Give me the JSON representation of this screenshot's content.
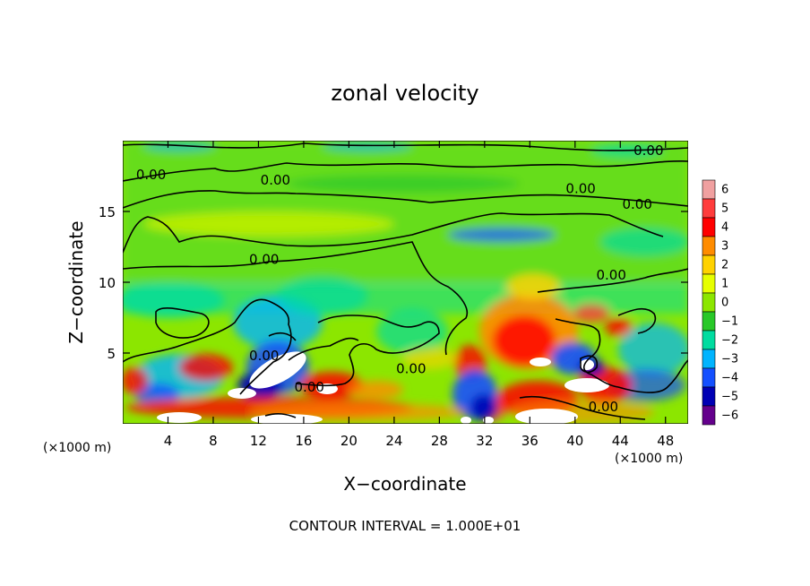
{
  "chart_data": {
    "type": "heatmap",
    "title": "zonal velocity",
    "xlabel": "X−coordinate",
    "ylabel": "Z−coordinate",
    "x_unit": "(×1000 m)",
    "y_unit": "(×1000 m)",
    "xlim": [
      0,
      50
    ],
    "ylim": [
      0,
      20
    ],
    "x_ticks": [
      4,
      8,
      12,
      16,
      20,
      24,
      28,
      32,
      36,
      40,
      44,
      48
    ],
    "y_ticks": [
      5,
      10,
      15
    ],
    "colorbar": {
      "min": -6,
      "max": 6,
      "ticks": [
        "6",
        "5",
        "4",
        "3",
        "2",
        "1",
        "0",
        "−1",
        "−2",
        "−3",
        "−4",
        "−5",
        "−6"
      ],
      "colors": [
        "#f0a0a0",
        "#ff3c3c",
        "#ff0000",
        "#ff8c00",
        "#ffd200",
        "#e6ff00",
        "#8ce600",
        "#28c828",
        "#00dca0",
        "#00b4ff",
        "#1450ff",
        "#0000b4",
        "#64008c"
      ]
    },
    "contour_labels": [
      {
        "text": "0.00",
        "x": 2.5,
        "z": 17.6
      },
      {
        "text": "0.00",
        "x": 13.5,
        "z": 17.2
      },
      {
        "text": "0.00",
        "x": 46.5,
        "z": 19.3
      },
      {
        "text": "0.00",
        "x": 40.5,
        "z": 16.6
      },
      {
        "text": "0.00",
        "x": 45.5,
        "z": 15.5
      },
      {
        "text": "0.00",
        "x": 12.5,
        "z": 11.6
      },
      {
        "text": "0.00",
        "x": 43.2,
        "z": 10.5
      },
      {
        "text": "0.00",
        "x": 12.5,
        "z": 4.8
      },
      {
        "text": "0.00",
        "x": 25.5,
        "z": 3.9
      },
      {
        "text": "0.00",
        "x": 16.5,
        "z": 2.6
      },
      {
        "text": "0.00",
        "x": 42.5,
        "z": 1.2
      }
    ],
    "grid": false,
    "legend": "right"
  },
  "footer": "CONTOUR INTERVAL = 1.000E+01"
}
